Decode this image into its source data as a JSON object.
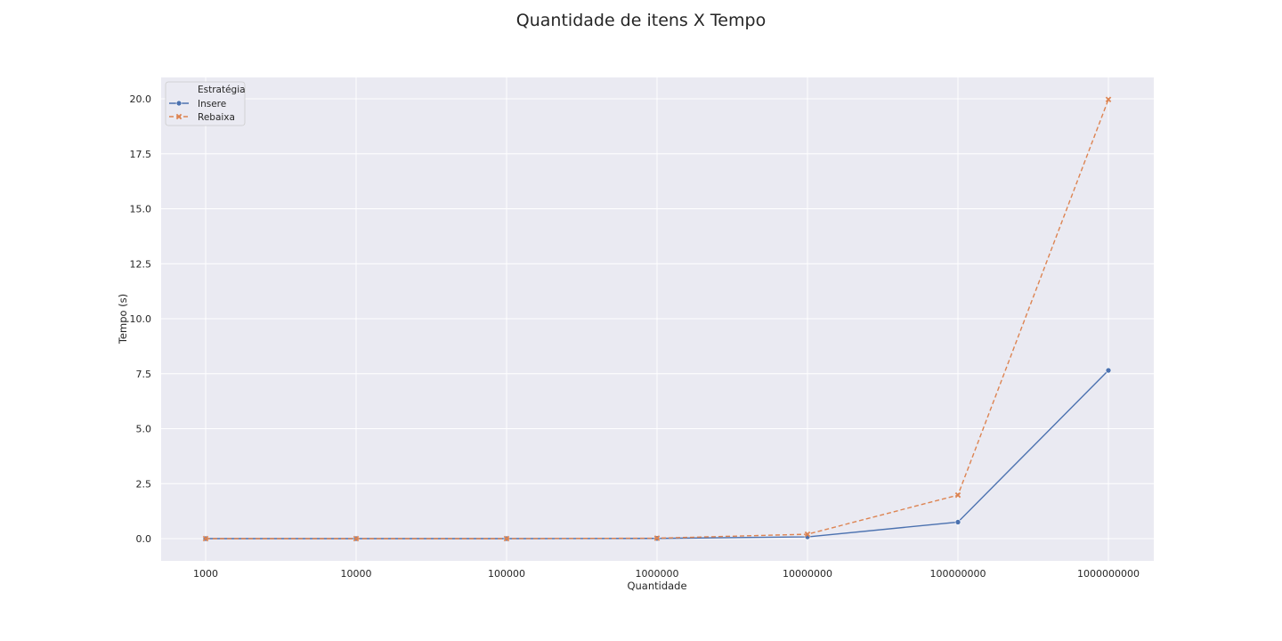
{
  "chart_data": {
    "type": "line",
    "title": "Quantidade de itens X Tempo",
    "xlabel": "Quantidade",
    "ylabel": "Tempo (s)",
    "categories": [
      "1000",
      "10000",
      "100000",
      "1000000",
      "10000000",
      "100000000",
      "1000000000"
    ],
    "yticks": [
      "0.0",
      "2.5",
      "5.0",
      "7.5",
      "10.0",
      "12.5",
      "15.0",
      "17.5",
      "20.0"
    ],
    "ylim": [
      -1.0,
      21.0
    ],
    "grid": true,
    "legend": {
      "title": "Estratégia",
      "placement": "top-left"
    },
    "series": [
      {
        "name": "Insere",
        "color": "#4c72b0",
        "marker": "circle",
        "dash": "solid",
        "values": [
          0.0,
          0.0,
          0.0,
          0.01,
          0.08,
          0.75,
          7.65
        ]
      },
      {
        "name": "Rebaixa",
        "color": "#dd8452",
        "marker": "x",
        "dash": "dashed",
        "values": [
          0.0,
          0.0,
          0.0,
          0.02,
          0.2,
          1.98,
          19.97
        ]
      }
    ],
    "colors": {
      "plot_background": "#eaeaf2",
      "grid": "#ffffff"
    }
  }
}
